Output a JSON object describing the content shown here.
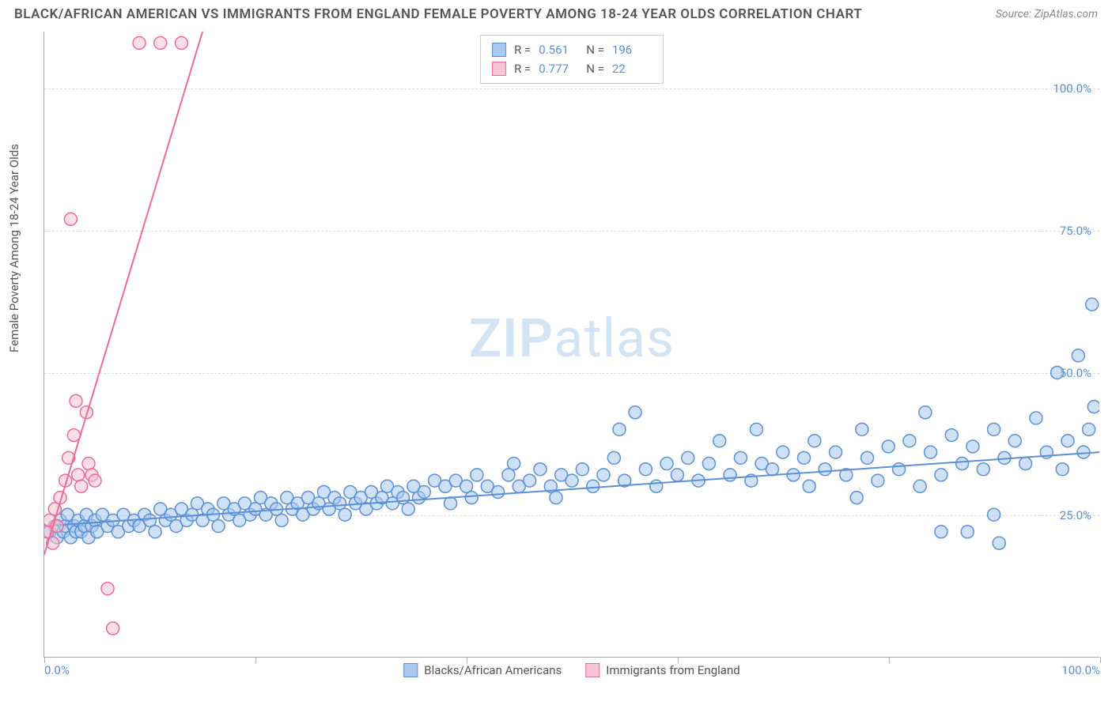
{
  "title": "BLACK/AFRICAN AMERICAN VS IMMIGRANTS FROM ENGLAND FEMALE POVERTY AMONG 18-24 YEAR OLDS CORRELATION CHART",
  "source_label": "Source:",
  "source_value": "ZipAtlas.com",
  "y_axis_label": "Female Poverty Among 18-24 Year Olds",
  "watermark_1": "ZIP",
  "watermark_2": "atlas",
  "chart": {
    "type": "scatter",
    "background_color": "#ffffff",
    "grid_color": "#dddddd",
    "axis_color": "#aaaaaa",
    "tick_label_color": "#5b8fd6",
    "xlim": [
      0,
      100
    ],
    "ylim": [
      0,
      110
    ],
    "x_ticks": [
      0,
      20,
      40,
      60,
      80,
      100
    ],
    "x_tick_labels": {
      "0": "0.0%",
      "100": "100.0%"
    },
    "y_ticks": [
      25,
      50,
      75,
      100
    ],
    "y_tick_labels": {
      "25": "25.0%",
      "50": "50.0%",
      "75": "75.0%",
      "100": "100.0%"
    },
    "marker_radius": 8,
    "marker_stroke_width": 1.5,
    "line_width": 2,
    "series": [
      {
        "name": "Blacks/African Americans",
        "fill_color": "#a8c9ed",
        "stroke_color": "#5b8fd6",
        "fill_opacity": 0.55,
        "r_value": "0.561",
        "n_value": "196",
        "trend_line": {
          "x1": 0,
          "y1": 23,
          "x2": 100,
          "y2": 36
        },
        "points": [
          [
            0.5,
            22
          ],
          [
            1,
            23
          ],
          [
            1.2,
            21
          ],
          [
            1.5,
            24
          ],
          [
            1.8,
            22
          ],
          [
            2,
            23
          ],
          [
            2.2,
            25
          ],
          [
            2.5,
            21
          ],
          [
            2.8,
            23
          ],
          [
            3,
            22
          ],
          [
            3.2,
            24
          ],
          [
            3.5,
            22
          ],
          [
            3.8,
            23
          ],
          [
            4,
            25
          ],
          [
            4.2,
            21
          ],
          [
            4.5,
            23
          ],
          [
            4.8,
            24
          ],
          [
            5,
            22
          ],
          [
            5.5,
            25
          ],
          [
            6,
            23
          ],
          [
            6.5,
            24
          ],
          [
            7,
            22
          ],
          [
            7.5,
            25
          ],
          [
            8,
            23
          ],
          [
            8.5,
            24
          ],
          [
            9,
            23
          ],
          [
            9.5,
            25
          ],
          [
            10,
            24
          ],
          [
            10.5,
            22
          ],
          [
            11,
            26
          ],
          [
            11.5,
            24
          ],
          [
            12,
            25
          ],
          [
            12.5,
            23
          ],
          [
            13,
            26
          ],
          [
            13.5,
            24
          ],
          [
            14,
            25
          ],
          [
            14.5,
            27
          ],
          [
            15,
            24
          ],
          [
            15.5,
            26
          ],
          [
            16,
            25
          ],
          [
            16.5,
            23
          ],
          [
            17,
            27
          ],
          [
            17.5,
            25
          ],
          [
            18,
            26
          ],
          [
            18.5,
            24
          ],
          [
            19,
            27
          ],
          [
            19.5,
            25
          ],
          [
            20,
            26
          ],
          [
            20.5,
            28
          ],
          [
            21,
            25
          ],
          [
            21.5,
            27
          ],
          [
            22,
            26
          ],
          [
            22.5,
            24
          ],
          [
            23,
            28
          ],
          [
            23.5,
            26
          ],
          [
            24,
            27
          ],
          [
            24.5,
            25
          ],
          [
            25,
            28
          ],
          [
            25.5,
            26
          ],
          [
            26,
            27
          ],
          [
            26.5,
            29
          ],
          [
            27,
            26
          ],
          [
            27.5,
            28
          ],
          [
            28,
            27
          ],
          [
            28.5,
            25
          ],
          [
            29,
            29
          ],
          [
            29.5,
            27
          ],
          [
            30,
            28
          ],
          [
            30.5,
            26
          ],
          [
            31,
            29
          ],
          [
            31.5,
            27
          ],
          [
            32,
            28
          ],
          [
            32.5,
            30
          ],
          [
            33,
            27
          ],
          [
            33.5,
            29
          ],
          [
            34,
            28
          ],
          [
            34.5,
            26
          ],
          [
            35,
            30
          ],
          [
            35.5,
            28
          ],
          [
            36,
            29
          ],
          [
            37,
            31
          ],
          [
            38,
            30
          ],
          [
            38.5,
            27
          ],
          [
            39,
            31
          ],
          [
            40,
            30
          ],
          [
            40.5,
            28
          ],
          [
            41,
            32
          ],
          [
            42,
            30
          ],
          [
            43,
            29
          ],
          [
            44,
            32
          ],
          [
            44.5,
            34
          ],
          [
            45,
            30
          ],
          [
            46,
            31
          ],
          [
            47,
            33
          ],
          [
            48,
            30
          ],
          [
            48.5,
            28
          ],
          [
            49,
            32
          ],
          [
            50,
            31
          ],
          [
            51,
            33
          ],
          [
            52,
            30
          ],
          [
            53,
            32
          ],
          [
            54,
            35
          ],
          [
            54.5,
            40
          ],
          [
            55,
            31
          ],
          [
            56,
            43
          ],
          [
            57,
            33
          ],
          [
            58,
            30
          ],
          [
            59,
            34
          ],
          [
            60,
            32
          ],
          [
            61,
            35
          ],
          [
            62,
            31
          ],
          [
            63,
            34
          ],
          [
            64,
            38
          ],
          [
            65,
            32
          ],
          [
            66,
            35
          ],
          [
            67,
            31
          ],
          [
            67.5,
            40
          ],
          [
            68,
            34
          ],
          [
            69,
            33
          ],
          [
            70,
            36
          ],
          [
            71,
            32
          ],
          [
            72,
            35
          ],
          [
            72.5,
            30
          ],
          [
            73,
            38
          ],
          [
            74,
            33
          ],
          [
            75,
            36
          ],
          [
            76,
            32
          ],
          [
            77,
            28
          ],
          [
            77.5,
            40
          ],
          [
            78,
            35
          ],
          [
            79,
            31
          ],
          [
            80,
            37
          ],
          [
            81,
            33
          ],
          [
            82,
            38
          ],
          [
            83,
            30
          ],
          [
            83.5,
            43
          ],
          [
            84,
            36
          ],
          [
            85,
            32
          ],
          [
            86,
            39
          ],
          [
            87,
            34
          ],
          [
            87.5,
            22
          ],
          [
            88,
            37
          ],
          [
            89,
            33
          ],
          [
            90,
            40
          ],
          [
            90.5,
            20
          ],
          [
            91,
            35
          ],
          [
            92,
            38
          ],
          [
            93,
            34
          ],
          [
            94,
            42
          ],
          [
            95,
            36
          ],
          [
            96,
            50
          ],
          [
            96.5,
            33
          ],
          [
            97,
            38
          ],
          [
            98,
            53
          ],
          [
            98.5,
            36
          ],
          [
            99,
            40
          ],
          [
            99.3,
            62
          ],
          [
            99.5,
            44
          ],
          [
            90,
            25
          ],
          [
            85,
            22
          ]
        ]
      },
      {
        "name": "Immigrants from England",
        "fill_color": "#f7c5d4",
        "stroke_color": "#ed6a9a",
        "fill_opacity": 0.55,
        "r_value": "0.777",
        "n_value": "22",
        "trend_line": {
          "x1": 0,
          "y1": 18,
          "x2": 15,
          "y2": 110
        },
        "points": [
          [
            0.3,
            22
          ],
          [
            0.5,
            24
          ],
          [
            0.8,
            20
          ],
          [
            1,
            26
          ],
          [
            1.2,
            23
          ],
          [
            1.5,
            28
          ],
          [
            2,
            31
          ],
          [
            2.3,
            35
          ],
          [
            2.8,
            39
          ],
          [
            3,
            45
          ],
          [
            3.2,
            32
          ],
          [
            3.5,
            30
          ],
          [
            4,
            43
          ],
          [
            4.2,
            34
          ],
          [
            4.5,
            32
          ],
          [
            2.5,
            77
          ],
          [
            4.8,
            31
          ],
          [
            6,
            12
          ],
          [
            6.5,
            5
          ],
          [
            9,
            108
          ],
          [
            11,
            108
          ],
          [
            13,
            108
          ]
        ]
      }
    ]
  },
  "legend_r_label": "R =",
  "legend_n_label": "N ="
}
